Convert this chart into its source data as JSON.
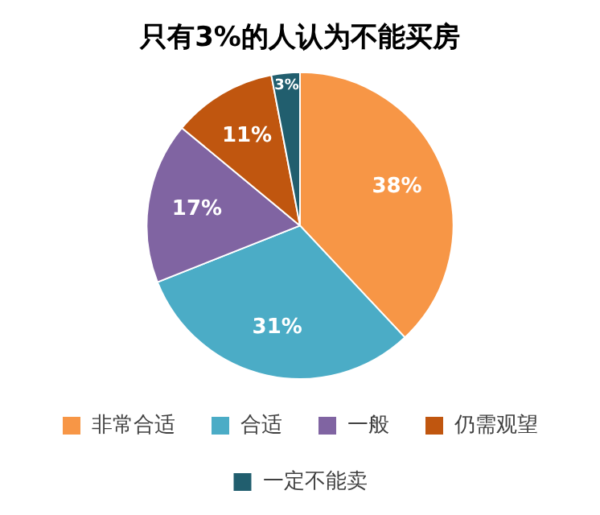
{
  "chart_data": {
    "type": "pie",
    "title": "只有3%的人认为不能买房",
    "categories": [
      "非常合适",
      "合适",
      "一般",
      "仍需观望",
      "一定不能卖"
    ],
    "values": [
      38,
      31,
      17,
      11,
      3
    ],
    "colors": [
      "#f79646",
      "#4bacc6",
      "#8064a2",
      "#c0560f",
      "#215e6e"
    ],
    "value_labels": [
      "38%",
      "31%",
      "17%",
      "11%",
      "3%"
    ],
    "legend": "bottom"
  }
}
